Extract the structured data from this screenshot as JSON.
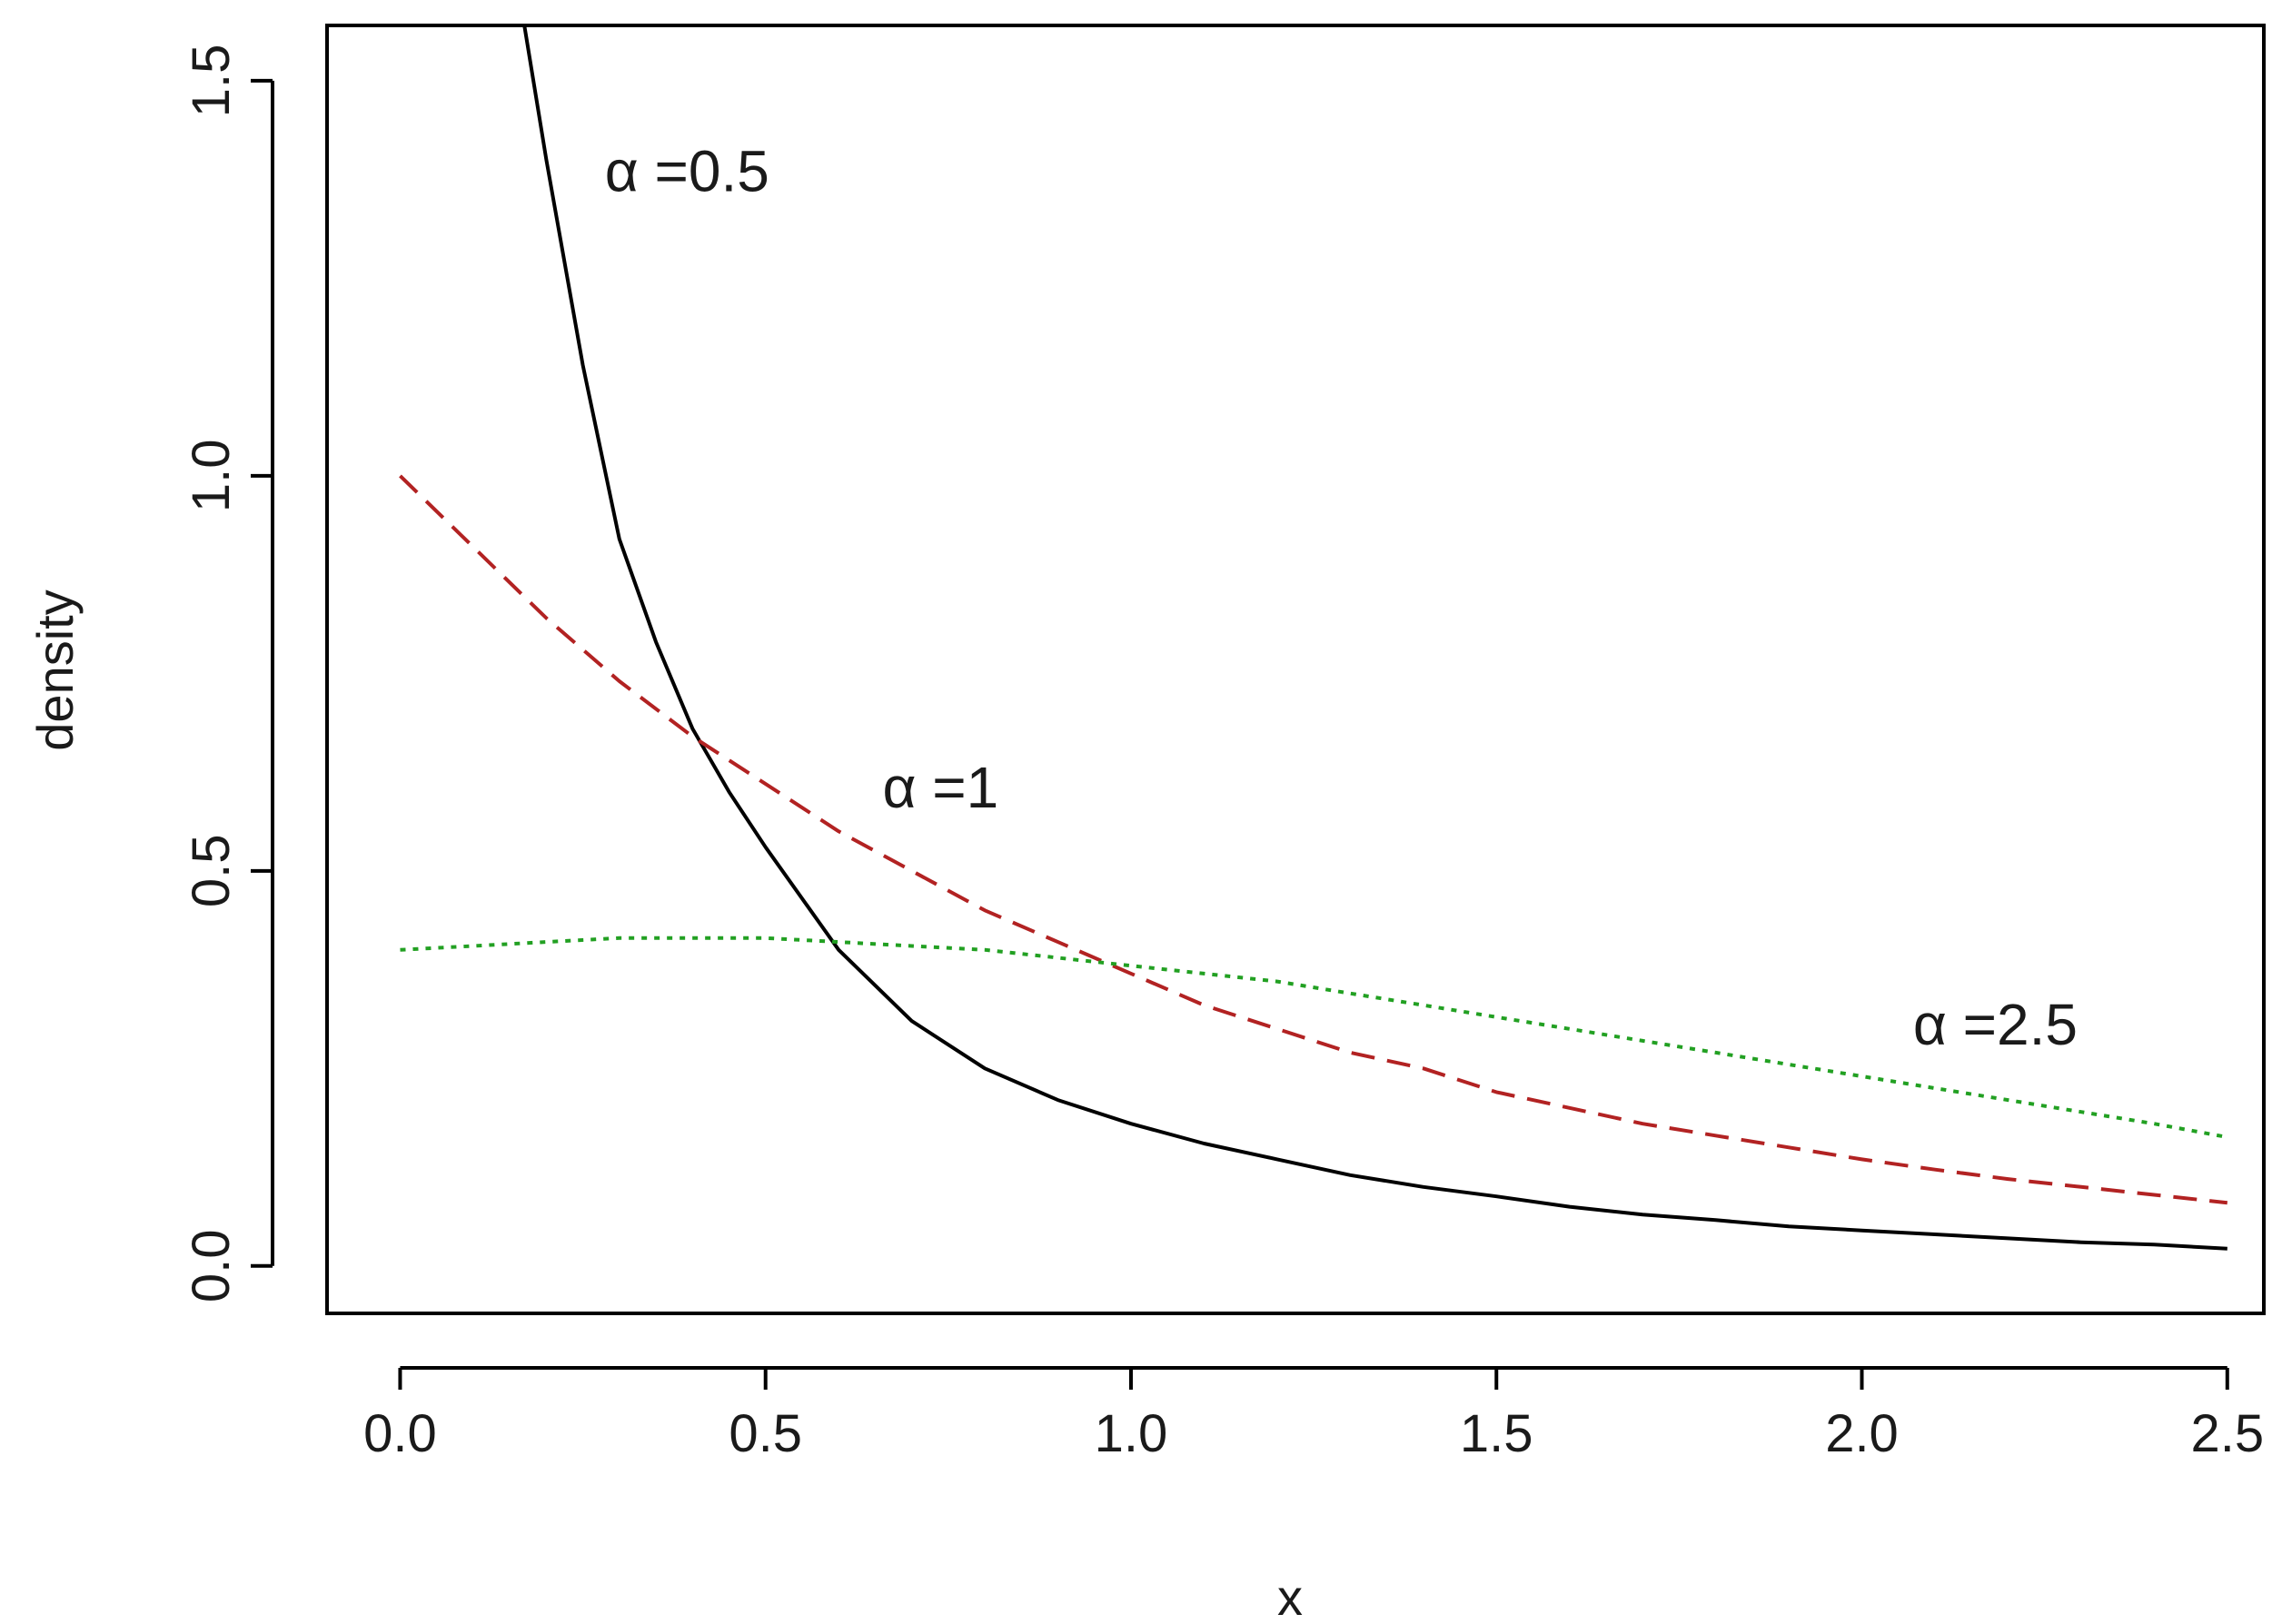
{
  "chart_data": {
    "type": "line",
    "title": "",
    "xlabel": "x",
    "ylabel": "density",
    "xlim": [
      -0.1,
      2.55
    ],
    "ylim": [
      -0.06,
      1.57
    ],
    "x_ticks": [
      "0.0",
      "0.5",
      "1.0",
      "1.5",
      "2.0",
      "2.5"
    ],
    "x_tick_values": [
      0,
      0.5,
      1,
      1.5,
      2,
      2.5
    ],
    "y_ticks": [
      "0.0",
      "0.5",
      "1.0",
      "1.5"
    ],
    "y_tick_values": [
      0,
      0.5,
      1,
      1.5
    ],
    "grid": false,
    "x": [
      0.17,
      0.2,
      0.25,
      0.3,
      0.35,
      0.4,
      0.45,
      0.5,
      0.6,
      0.7,
      0.8,
      0.9,
      1.0,
      1.1,
      1.2,
      1.3,
      1.4,
      1.5,
      1.6,
      1.7,
      1.8,
      1.9,
      2.0,
      2.1,
      2.2,
      2.3,
      2.4,
      2.5
    ],
    "series": [
      {
        "name": "α =0.5",
        "color": "#000000",
        "dash": "solid",
        "x": [
          0.17,
          0.2,
          0.25,
          0.3,
          0.35,
          0.4,
          0.45,
          0.5,
          0.6,
          0.7,
          0.8,
          0.9,
          1.0,
          1.1,
          1.2,
          1.3,
          1.4,
          1.5,
          1.6,
          1.7,
          1.8,
          1.9,
          2.0,
          2.1,
          2.2,
          2.3,
          2.4,
          2.5
        ],
        "values": [
          1.57,
          1.4,
          1.14,
          0.92,
          0.79,
          0.68,
          0.6,
          0.53,
          0.4,
          0.31,
          0.25,
          0.21,
          0.18,
          0.155,
          0.135,
          0.115,
          0.1,
          0.088,
          0.075,
          0.065,
          0.058,
          0.05,
          0.045,
          0.04,
          0.035,
          0.03,
          0.027,
          0.022
        ]
      },
      {
        "name": "α =1",
        "color": "#b22222",
        "dash": "dashed",
        "x": [
          0,
          0.1,
          0.2,
          0.3,
          0.4,
          0.5,
          0.6,
          0.7,
          0.8,
          0.9,
          1.0,
          1.1,
          1.2,
          1.3,
          1.4,
          1.5,
          1.6,
          1.7,
          1.8,
          1.9,
          2.0,
          2.1,
          2.2,
          2.3,
          2.4,
          2.5
        ],
        "values": [
          1.0,
          0.91,
          0.82,
          0.74,
          0.67,
          0.61,
          0.55,
          0.5,
          0.45,
          0.41,
          0.37,
          0.33,
          0.3,
          0.27,
          0.25,
          0.22,
          0.2,
          0.18,
          0.165,
          0.15,
          0.135,
          0.122,
          0.11,
          0.1,
          0.09,
          0.08
        ]
      },
      {
        "name": "α =2.5",
        "color": "#22a022",
        "dash": "dotted",
        "x": [
          0,
          0.1,
          0.2,
          0.3,
          0.4,
          0.5,
          0.6,
          0.7,
          0.8,
          0.9,
          1.0,
          1.1,
          1.2,
          1.3,
          1.4,
          1.5,
          1.6,
          1.7,
          1.8,
          1.9,
          2.0,
          2.1,
          2.2,
          2.3,
          2.4,
          2.5
        ],
        "values": [
          0.4,
          0.405,
          0.41,
          0.415,
          0.415,
          0.415,
          0.41,
          0.405,
          0.4,
          0.39,
          0.38,
          0.37,
          0.36,
          0.345,
          0.33,
          0.315,
          0.3,
          0.285,
          0.27,
          0.255,
          0.24,
          0.225,
          0.21,
          0.195,
          0.18,
          0.163
        ]
      }
    ],
    "annotations": [
      {
        "text": "α =0.5",
        "x": 0.28,
        "y": 1.36
      },
      {
        "text": "α =1",
        "x": 0.66,
        "y": 0.58
      },
      {
        "text": "α =2.5",
        "x": 2.07,
        "y": 0.28
      }
    ]
  }
}
